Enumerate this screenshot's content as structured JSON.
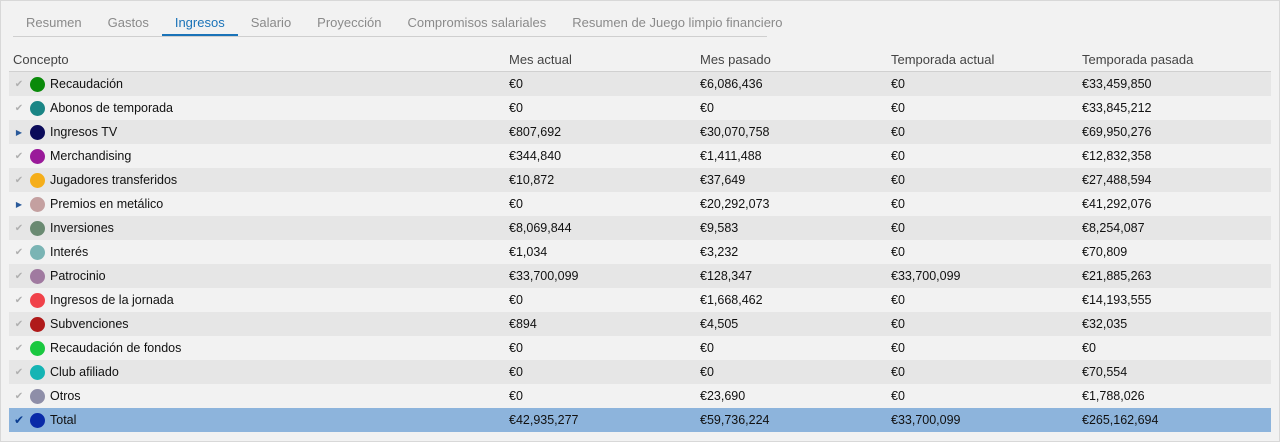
{
  "tabs": [
    {
      "label": "Resumen",
      "active": false
    },
    {
      "label": "Gastos",
      "active": false
    },
    {
      "label": "Ingresos",
      "active": true
    },
    {
      "label": "Salario",
      "active": false
    },
    {
      "label": "Proyección",
      "active": false
    },
    {
      "label": "Compromisos salariales",
      "active": false
    },
    {
      "label": "Resumen de Juego limpio financiero",
      "active": false
    }
  ],
  "table": {
    "headers": [
      "Concepto",
      "Mes actual",
      "Mes pasado",
      "Temporada actual",
      "Temporada pasada"
    ],
    "rows": [
      {
        "mark": "check-icon",
        "color": "#0a8a0a",
        "label": "Recaudación",
        "values": [
          "€0",
          "€6,086,436",
          "€0",
          "€33,459,850"
        ]
      },
      {
        "mark": "check-icon",
        "color": "#1a8585",
        "label": "Abonos de temporada",
        "values": [
          "€0",
          "€0",
          "€0",
          "€33,845,212"
        ]
      },
      {
        "mark": "expand-triangle-icon",
        "color": "#0b0b5a",
        "label": "Ingresos TV",
        "values": [
          "€807,692",
          "€30,070,758",
          "€0",
          "€69,950,276"
        ]
      },
      {
        "mark": "check-icon",
        "color": "#9a1a9a",
        "label": "Merchandising",
        "values": [
          "€344,840",
          "€1,411,488",
          "€0",
          "€12,832,358"
        ]
      },
      {
        "mark": "check-icon",
        "color": "#f5ae1a",
        "label": "Jugadores transferidos",
        "values": [
          "€10,872",
          "€37,649",
          "€0",
          "€27,488,594"
        ]
      },
      {
        "mark": "expand-triangle-icon",
        "color": "#c4a0a0",
        "label": "Premios en metálico",
        "values": [
          "€0",
          "€20,292,073",
          "€0",
          "€41,292,076"
        ]
      },
      {
        "mark": "check-icon",
        "color": "#6a8a72",
        "label": "Inversiones",
        "values": [
          "€8,069,844",
          "€9,583",
          "€0",
          "€8,254,087"
        ]
      },
      {
        "mark": "check-icon",
        "color": "#7ab4b4",
        "label": "Interés",
        "values": [
          "€1,034",
          "€3,232",
          "€0",
          "€70,809"
        ]
      },
      {
        "mark": "check-icon",
        "color": "#a07aa0",
        "label": "Patrocinio",
        "values": [
          "€33,700,099",
          "€128,347",
          "€33,700,099",
          "€21,885,263"
        ]
      },
      {
        "mark": "check-icon",
        "color": "#f0424a",
        "label": "Ingresos de la jornada",
        "values": [
          "€0",
          "€1,668,462",
          "€0",
          "€14,193,555"
        ]
      },
      {
        "mark": "check-icon",
        "color": "#b01a1a",
        "label": "Subvenciones",
        "values": [
          "€894",
          "€4,505",
          "€0",
          "€32,035"
        ]
      },
      {
        "mark": "check-icon",
        "color": "#1ac840",
        "label": "Recaudación de fondos",
        "values": [
          "€0",
          "€0",
          "€0",
          "€0"
        ]
      },
      {
        "mark": "check-icon",
        "color": "#14b4b4",
        "label": "Club afiliado",
        "values": [
          "€0",
          "€0",
          "€0",
          "€70,554"
        ]
      },
      {
        "mark": "check-icon",
        "color": "#8e8ea8",
        "label": "Otros",
        "values": [
          "€0",
          "€23,690",
          "€0",
          "€1,788,026"
        ]
      }
    ],
    "total": {
      "mark": "check-icon",
      "color": "#0a2aa8",
      "label": "Total",
      "values": [
        "€42,935,277",
        "€59,736,224",
        "€33,700,099",
        "€265,162,694"
      ]
    }
  }
}
